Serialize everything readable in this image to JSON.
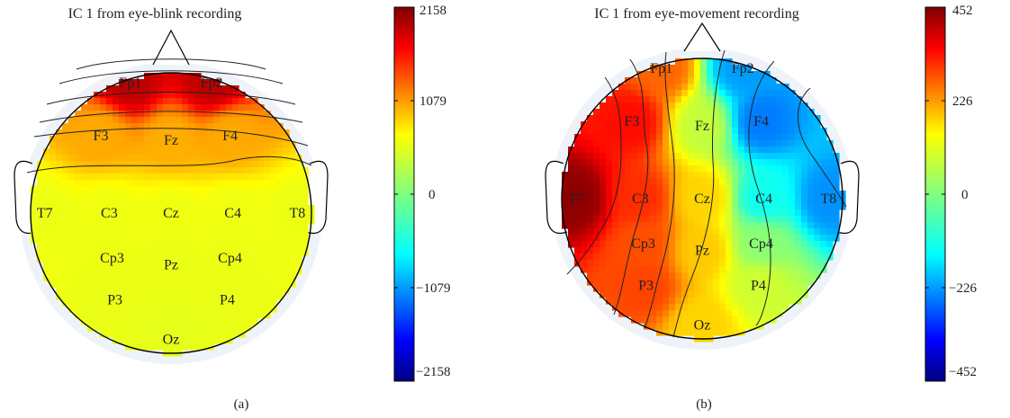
{
  "figure": {
    "panels": [
      {
        "title": "IC 1 from eye-blink recording",
        "caption": "(a)",
        "colorbar": {
          "max_label": "2158",
          "upper_label": "1079",
          "zero_label": "0",
          "lower_label": "−1079",
          "min_label": "−2158"
        }
      },
      {
        "title": "IC 1 from eye-movement recording",
        "caption": "(b)",
        "colorbar": {
          "max_label": "452",
          "upper_label": "226",
          "zero_label": "0",
          "lower_label": "−226",
          "min_label": "−452"
        }
      }
    ]
  },
  "chart_data": [
    {
      "type": "heatmap",
      "subtype": "scalp-topography",
      "title": "IC 1 from eye-blink recording",
      "caption": "(a)",
      "colormap": "jet",
      "clim": [
        -2158,
        2158
      ],
      "colorbar_ticks": [
        -2158,
        -1079,
        0,
        1079,
        2158
      ],
      "electrodes": [
        "Fp1",
        "Fp2",
        "F3",
        "Fz",
        "F4",
        "T7",
        "C3",
        "Cz",
        "C4",
        "T8",
        "Cp3",
        "Pz",
        "Cp4",
        "P3",
        "P4",
        "Oz"
      ],
      "values": {
        "Fp1": 1900,
        "Fp2": 1900,
        "F3": 900,
        "Fz": 880,
        "F4": 900,
        "T7": 460,
        "C3": 470,
        "Cz": 470,
        "C4": 470,
        "T8": 460,
        "Cp3": 460,
        "Pz": 450,
        "Cp4": 460,
        "P3": 450,
        "P4": 450,
        "Oz": 430
      },
      "contours": true
    },
    {
      "type": "heatmap",
      "subtype": "scalp-topography",
      "title": "IC 1 from eye-movement recording",
      "caption": "(b)",
      "colormap": "jet",
      "clim": [
        -452,
        452
      ],
      "colorbar_ticks": [
        -452,
        -226,
        0,
        226,
        452
      ],
      "electrodes": [
        "Fp1",
        "Fp2",
        "F3",
        "Fz",
        "F4",
        "T7",
        "C3",
        "Cz",
        "C4",
        "T8",
        "Cp3",
        "Pz",
        "Cp4",
        "P3",
        "P4",
        "Oz"
      ],
      "values": {
        "Fp1": 250,
        "Fp2": -200,
        "F3": 330,
        "Fz": 60,
        "F4": -230,
        "T7": 440,
        "C3": 300,
        "Cz": 150,
        "C4": -100,
        "T8": -210,
        "Cp3": 270,
        "Pz": 160,
        "Cp4": 10,
        "P3": 280,
        "P4": 70,
        "Oz": 150
      },
      "contours": true
    }
  ]
}
